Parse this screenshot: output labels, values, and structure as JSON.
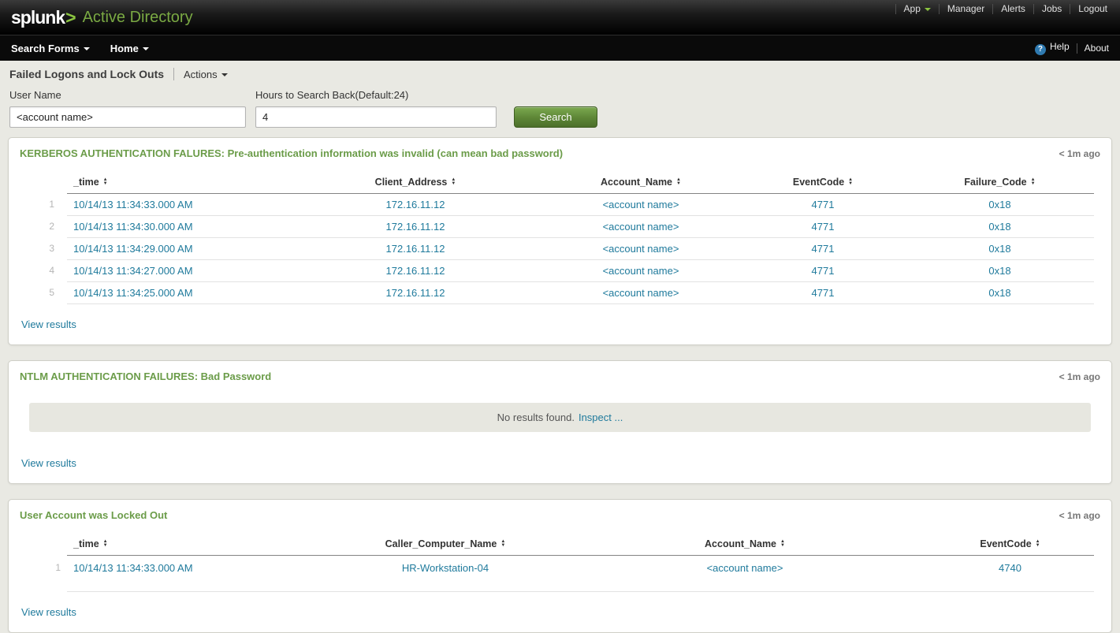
{
  "topbar": {
    "logo": "splunk",
    "logo_arrow": ">",
    "app_title": "Active Directory",
    "menu": [
      {
        "label": "App"
      },
      {
        "label": "Manager"
      },
      {
        "label": "Alerts"
      },
      {
        "label": "Jobs"
      },
      {
        "label": "Logout"
      }
    ]
  },
  "navbar": {
    "items": [
      {
        "label": "Search Forms"
      },
      {
        "label": "Home"
      }
    ],
    "help_label": "Help",
    "about_label": "About",
    "help_icon_glyph": "?"
  },
  "page_header": {
    "title": "Failed Logons and Lock Outs",
    "actions_label": "Actions"
  },
  "form": {
    "username_label": "User Name",
    "username_value": "<account name>",
    "hours_label": "Hours to Search Back(Default:24)",
    "hours_value": "4",
    "search_label": "Search"
  },
  "panels": [
    {
      "title": "KERBEROS AUTHENTICATION FALURES: Pre-authentication information was invalid (can mean bad password)",
      "age": "< 1m ago",
      "view_results": "View results",
      "table": {
        "columns": [
          "_time",
          "Client_Address",
          "Account_Name",
          "EventCode",
          "Failure_Code"
        ],
        "rows": [
          [
            "1",
            "10/14/13 11:34:33.000 AM",
            "172.16.11.12",
            "<account name>",
            "4771",
            "0x18"
          ],
          [
            "2",
            "10/14/13 11:34:30.000 AM",
            "172.16.11.12",
            "<account name>",
            "4771",
            "0x18"
          ],
          [
            "3",
            "10/14/13 11:34:29.000 AM",
            "172.16.11.12",
            "<account name>",
            "4771",
            "0x18"
          ],
          [
            "4",
            "10/14/13 11:34:27.000 AM",
            "172.16.11.12",
            "<account name>",
            "4771",
            "0x18"
          ],
          [
            "5",
            "10/14/13 11:34:25.000 AM",
            "172.16.11.12",
            "<account name>",
            "4771",
            "0x18"
          ]
        ]
      }
    },
    {
      "title": "NTLM AUTHENTICATION FAILURES: Bad Password",
      "age": "< 1m ago",
      "no_results_text": "No results found.",
      "inspect_label": "Inspect ...",
      "view_results": "View results"
    },
    {
      "title": "User Account was Locked Out",
      "age": "< 1m ago",
      "view_results": "View results",
      "table": {
        "columns": [
          "_time",
          "Caller_Computer_Name",
          "Account_Name",
          "EventCode"
        ],
        "rows": [
          [
            "1",
            "10/14/13 11:34:33.000 AM",
            "HR-Workstation-04",
            "<account name>",
            "4740"
          ]
        ]
      }
    }
  ],
  "icons": {
    "sort": "▲▼",
    "dropdown_caret": "▼",
    "help": "?"
  },
  "colors": {
    "panel_title_green": "#6b9c49",
    "link_blue": "#1f7a9c",
    "logo_green": "#8bc540",
    "button_green": "#5d8536",
    "page_background": "#e9e9e3",
    "topbar_black": "#000000"
  }
}
